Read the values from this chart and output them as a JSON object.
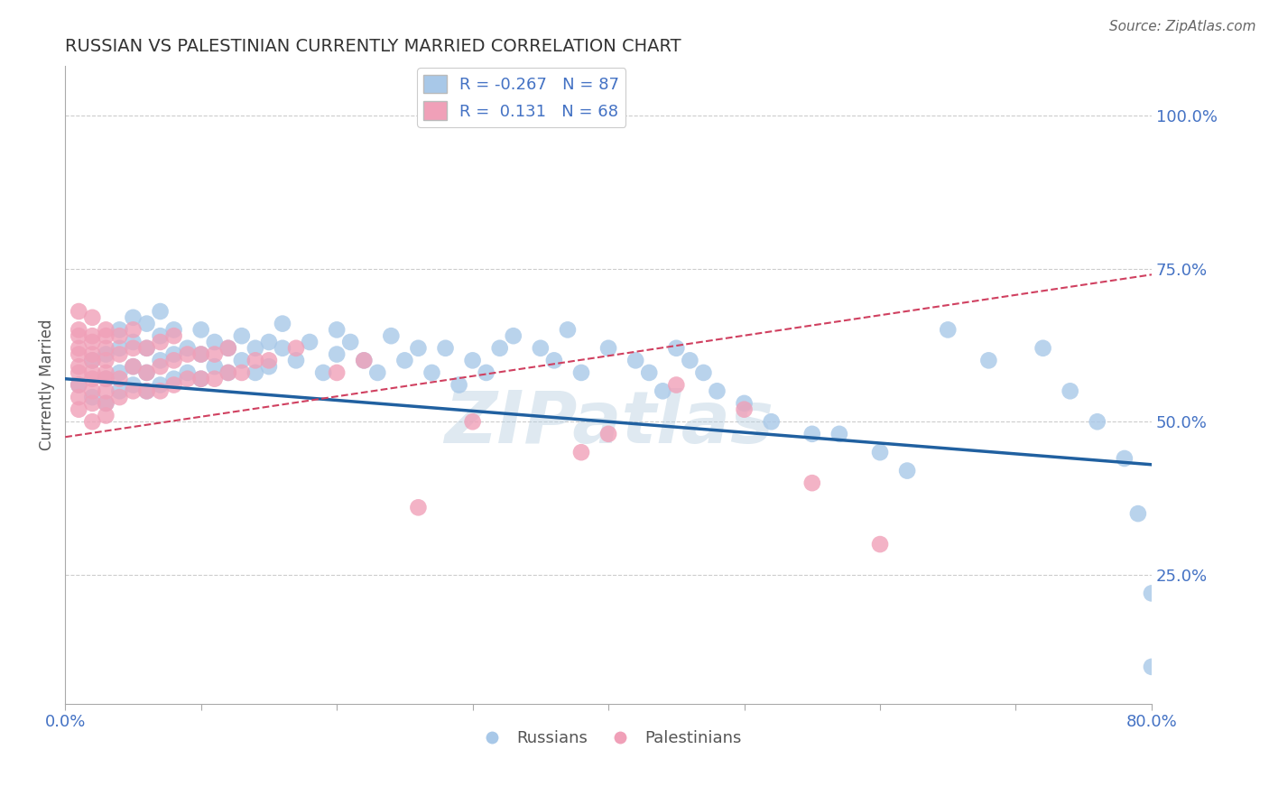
{
  "title": "RUSSIAN VS PALESTINIAN CURRENTLY MARRIED CORRELATION CHART",
  "source": "Source: ZipAtlas.com",
  "ylabel": "Currently Married",
  "watermark": "ZIPatlas",
  "blue_R": -0.267,
  "blue_N": 87,
  "pink_R": 0.131,
  "pink_N": 68,
  "xmin": 0.0,
  "xmax": 0.8,
  "ymin": 0.04,
  "ymax": 1.08,
  "yticks": [
    0.25,
    0.5,
    0.75,
    1.0
  ],
  "ytick_labels": [
    "25.0%",
    "50.0%",
    "75.0%",
    "100.0%"
  ],
  "blue_color": "#a8c8e8",
  "blue_line_color": "#2060a0",
  "pink_color": "#f0a0b8",
  "pink_line_color": "#d04060",
  "background_color": "#ffffff",
  "grid_color": "#cccccc",
  "title_color": "#333333",
  "label_color": "#4472c4",
  "blue_line_x0": 0.0,
  "blue_line_y0": 0.57,
  "blue_line_x1": 0.8,
  "blue_line_y1": 0.43,
  "pink_line_x0": 0.0,
  "pink_line_y0": 0.475,
  "pink_line_x1": 0.8,
  "pink_line_y1": 0.74,
  "blue_x": [
    0.01,
    0.02,
    0.02,
    0.03,
    0.03,
    0.03,
    0.04,
    0.04,
    0.04,
    0.04,
    0.05,
    0.05,
    0.05,
    0.05,
    0.06,
    0.06,
    0.06,
    0.06,
    0.07,
    0.07,
    0.07,
    0.07,
    0.08,
    0.08,
    0.08,
    0.09,
    0.09,
    0.1,
    0.1,
    0.1,
    0.11,
    0.11,
    0.12,
    0.12,
    0.13,
    0.13,
    0.14,
    0.14,
    0.15,
    0.15,
    0.16,
    0.16,
    0.17,
    0.18,
    0.19,
    0.2,
    0.2,
    0.21,
    0.22,
    0.23,
    0.24,
    0.25,
    0.26,
    0.27,
    0.28,
    0.29,
    0.3,
    0.31,
    0.32,
    0.33,
    0.35,
    0.36,
    0.37,
    0.38,
    0.4,
    0.42,
    0.43,
    0.44,
    0.45,
    0.46,
    0.47,
    0.48,
    0.5,
    0.52,
    0.55,
    0.57,
    0.6,
    0.62,
    0.65,
    0.68,
    0.72,
    0.74,
    0.76,
    0.78,
    0.79,
    0.8,
    0.8
  ],
  "blue_y": [
    0.56,
    0.6,
    0.54,
    0.57,
    0.61,
    0.53,
    0.58,
    0.55,
    0.62,
    0.65,
    0.56,
    0.59,
    0.63,
    0.67,
    0.55,
    0.58,
    0.62,
    0.66,
    0.56,
    0.6,
    0.64,
    0.68,
    0.57,
    0.61,
    0.65,
    0.58,
    0.62,
    0.57,
    0.61,
    0.65,
    0.59,
    0.63,
    0.58,
    0.62,
    0.6,
    0.64,
    0.58,
    0.62,
    0.59,
    0.63,
    0.62,
    0.66,
    0.6,
    0.63,
    0.58,
    0.65,
    0.61,
    0.63,
    0.6,
    0.58,
    0.64,
    0.6,
    0.62,
    0.58,
    0.62,
    0.56,
    0.6,
    0.58,
    0.62,
    0.64,
    0.62,
    0.6,
    0.65,
    0.58,
    0.62,
    0.6,
    0.58,
    0.55,
    0.62,
    0.6,
    0.58,
    0.55,
    0.53,
    0.5,
    0.48,
    0.48,
    0.45,
    0.42,
    0.65,
    0.6,
    0.62,
    0.55,
    0.5,
    0.44,
    0.35,
    0.22,
    0.1
  ],
  "pink_x": [
    0.01,
    0.01,
    0.01,
    0.01,
    0.01,
    0.01,
    0.01,
    0.01,
    0.01,
    0.01,
    0.02,
    0.02,
    0.02,
    0.02,
    0.02,
    0.02,
    0.02,
    0.02,
    0.02,
    0.02,
    0.03,
    0.03,
    0.03,
    0.03,
    0.03,
    0.03,
    0.03,
    0.03,
    0.03,
    0.04,
    0.04,
    0.04,
    0.04,
    0.05,
    0.05,
    0.05,
    0.05,
    0.06,
    0.06,
    0.06,
    0.07,
    0.07,
    0.07,
    0.08,
    0.08,
    0.08,
    0.09,
    0.09,
    0.1,
    0.1,
    0.11,
    0.11,
    0.12,
    0.12,
    0.13,
    0.14,
    0.15,
    0.17,
    0.2,
    0.22,
    0.26,
    0.3,
    0.38,
    0.4,
    0.45,
    0.5,
    0.55,
    0.6
  ],
  "pink_y": [
    0.56,
    0.59,
    0.62,
    0.65,
    0.68,
    0.54,
    0.58,
    0.61,
    0.64,
    0.52,
    0.55,
    0.58,
    0.61,
    0.64,
    0.67,
    0.53,
    0.57,
    0.6,
    0.63,
    0.5,
    0.55,
    0.58,
    0.62,
    0.65,
    0.53,
    0.57,
    0.6,
    0.64,
    0.51,
    0.54,
    0.57,
    0.61,
    0.64,
    0.55,
    0.59,
    0.62,
    0.65,
    0.55,
    0.58,
    0.62,
    0.55,
    0.59,
    0.63,
    0.56,
    0.6,
    0.64,
    0.57,
    0.61,
    0.57,
    0.61,
    0.57,
    0.61,
    0.58,
    0.62,
    0.58,
    0.6,
    0.6,
    0.62,
    0.58,
    0.6,
    0.36,
    0.5,
    0.45,
    0.48,
    0.56,
    0.52,
    0.4,
    0.3
  ]
}
